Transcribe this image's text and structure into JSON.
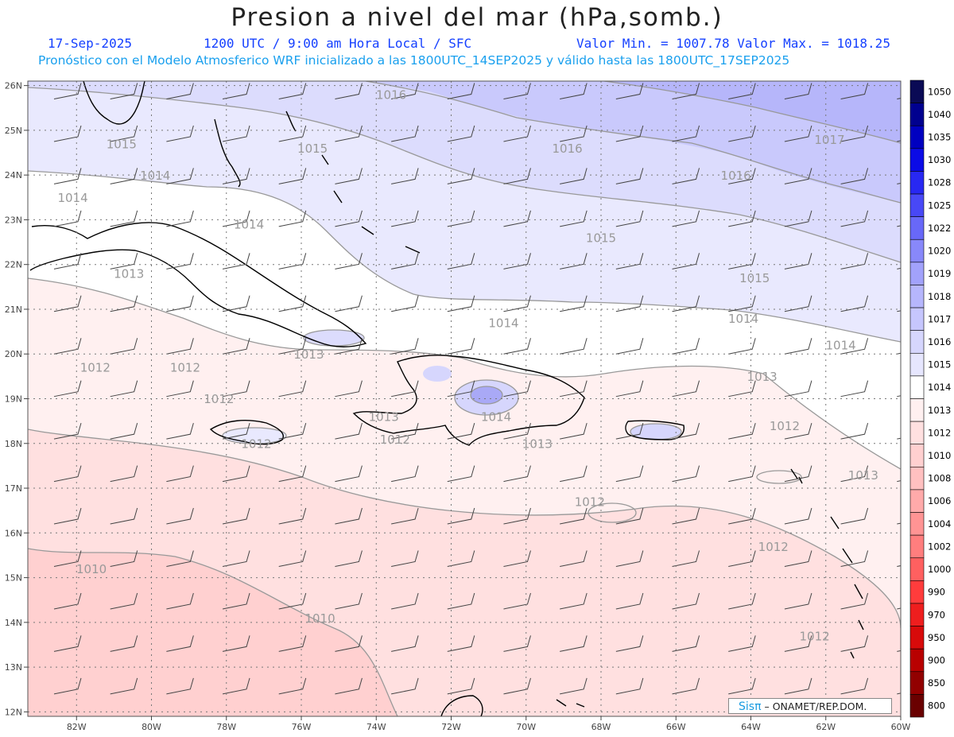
{
  "title": "Presion a nivel del mar (hPa,somb.)",
  "date": "17-Sep-2025",
  "time_info": "1200 UTC / 9:00 am Hora Local / SFC",
  "min_max": "Valor Min. = 1007.78  Valor Max. = 1018.25",
  "subtitle": "Pronóstico con el Modelo Atmosferico WRF inicializado a las 1800UTC_14SEP2025 y válido hasta las  1800UTC_17SEP2025",
  "credit": {
    "logo": "Sisπ",
    "org": "– ONAMET/REP.DOM."
  },
  "lat_labels": [
    "26N",
    "25N",
    "24N",
    "23N",
    "22N",
    "21N",
    "20N",
    "19N",
    "18N",
    "17N",
    "16N",
    "15N",
    "14N",
    "13N",
    "12N"
  ],
  "lon_labels": [
    "82W",
    "80W",
    "78W",
    "76W",
    "74W",
    "72W",
    "70W",
    "68W",
    "66W",
    "64W",
    "62W",
    "60W"
  ],
  "colorbar": {
    "levels": [
      "1050",
      "1040",
      "1035",
      "1030",
      "1028",
      "1025",
      "1022",
      "1020",
      "1019",
      "1018",
      "1017",
      "1016",
      "1015",
      "1014",
      "1013",
      "1012",
      "1010",
      "1008",
      "1006",
      "1004",
      "1002",
      "1000",
      "990",
      "970",
      "950",
      "900",
      "850",
      "800"
    ],
    "colors": [
      "#0a0a55",
      "#00008f",
      "#0000c0",
      "#0b0be6",
      "#2828f2",
      "#4848f6",
      "#6868f8",
      "#8888fa",
      "#a2a2fb",
      "#b6b6fc",
      "#c6c6fd",
      "#d6d6fd",
      "#e6e6fe",
      "#ffffff",
      "#fff0f0",
      "#ffe0e0",
      "#ffd0d0",
      "#ffc0c0",
      "#ffaaaa",
      "#ff9494",
      "#ff7e7e",
      "#ff6060",
      "#ff3c3c",
      "#ee1e1e",
      "#d80a0a",
      "#b80000",
      "#920000",
      "#6a0000"
    ]
  },
  "contour_labels": [
    {
      "text": "1016",
      "lon": -73.6,
      "lat": 25.7
    },
    {
      "text": "1017",
      "lon": -61.9,
      "lat": 24.7
    },
    {
      "text": "1016",
      "lon": -68.9,
      "lat": 24.5
    },
    {
      "text": "1016",
      "lon": -64.4,
      "lat": 23.9
    },
    {
      "text": "1015",
      "lon": -80.8,
      "lat": 24.6
    },
    {
      "text": "1015",
      "lon": -75.7,
      "lat": 24.5
    },
    {
      "text": "1014",
      "lon": -79.9,
      "lat": 23.9
    },
    {
      "text": "1014",
      "lon": -82.1,
      "lat": 23.4
    },
    {
      "text": "1014",
      "lon": -77.4,
      "lat": 22.8
    },
    {
      "text": "1015",
      "lon": -68.0,
      "lat": 22.5
    },
    {
      "text": "1015",
      "lon": -63.9,
      "lat": 21.6
    },
    {
      "text": "1014",
      "lon": -64.2,
      "lat": 20.7
    },
    {
      "text": "1014",
      "lon": -70.6,
      "lat": 20.6
    },
    {
      "text": "1013",
      "lon": -80.6,
      "lat": 21.7
    },
    {
      "text": "1014",
      "lon": -61.6,
      "lat": 20.1
    },
    {
      "text": "1013",
      "lon": -75.8,
      "lat": 19.9
    },
    {
      "text": "1012",
      "lon": -81.5,
      "lat": 19.6
    },
    {
      "text": "1012",
      "lon": -79.1,
      "lat": 19.6
    },
    {
      "text": "1013",
      "lon": -63.7,
      "lat": 19.4
    },
    {
      "text": "1012",
      "lon": -78.2,
      "lat": 18.9
    },
    {
      "text": "1013",
      "lon": -73.8,
      "lat": 18.5
    },
    {
      "text": "1014",
      "lon": -70.8,
      "lat": 18.5
    },
    {
      "text": "1012",
      "lon": -63.1,
      "lat": 18.3
    },
    {
      "text": "1012",
      "lon": -73.5,
      "lat": 18.0
    },
    {
      "text": "1012",
      "lon": -77.2,
      "lat": 17.9
    },
    {
      "text": "1013",
      "lon": -69.7,
      "lat": 17.9
    },
    {
      "text": "1013",
      "lon": -61.0,
      "lat": 17.2
    },
    {
      "text": "1012",
      "lon": -68.3,
      "lat": 16.6
    },
    {
      "text": "1012",
      "lon": -63.4,
      "lat": 15.6
    },
    {
      "text": "1010",
      "lon": -81.6,
      "lat": 15.1
    },
    {
      "text": "1010",
      "lon": -75.5,
      "lat": 14.0
    },
    {
      "text": "1012",
      "lon": -62.3,
      "lat": 13.6
    }
  ]
}
